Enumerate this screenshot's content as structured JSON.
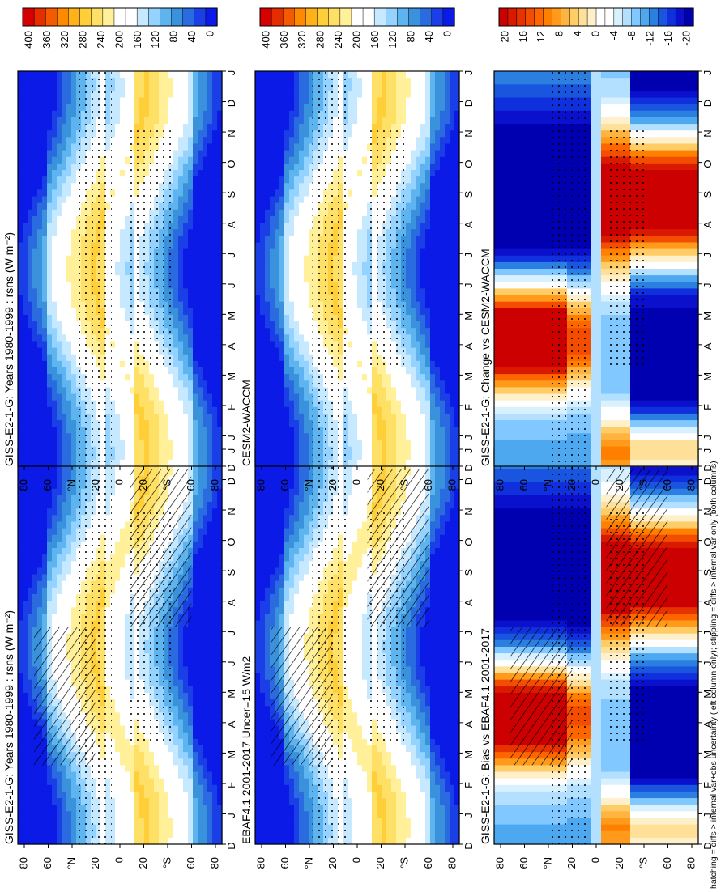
{
  "footnote": "hatching = diffs > internal var+obs uncertainty (left column only); stippling = diffs > internal var only (both columns)",
  "chart_data": [
    {
      "id": "p1",
      "type": "heatmap",
      "title": "GISS-E2-1-G: Years 1980-1999 : rsns (W m⁻²)",
      "field": "abs",
      "hatch": true,
      "stipple": true,
      "months": [
        "D",
        "J",
        "F",
        "M",
        "A",
        "M",
        "J",
        "J",
        "A",
        "S",
        "O",
        "N",
        "D",
        "J"
      ],
      "lat_ticks": [
        "80",
        "60",
        "°N",
        "20",
        "0",
        "20",
        "°S",
        "60",
        "80"
      ],
      "colorbar": {
        "labels": [
          "400",
          "360",
          "320",
          "280",
          "240",
          "200",
          "160",
          "120",
          "80",
          "40",
          "0"
        ],
        "levels": [
          400,
          360,
          320,
          280,
          240,
          200,
          160,
          120,
          80,
          40,
          0
        ],
        "range": [
          0,
          400
        ]
      }
    },
    {
      "id": "p2",
      "type": "heatmap",
      "title": "GISS-E2-1-G: Years 1980-1999 : rsns (W m⁻²)",
      "field": "abs",
      "hatch": false,
      "stipple": true,
      "months": [
        "D",
        "J",
        "F",
        "M",
        "A",
        "M",
        "J",
        "J",
        "A",
        "S",
        "O",
        "N",
        "D",
        "J"
      ],
      "lat_ticks": [
        "80",
        "60",
        "°N",
        "20",
        "0",
        "20",
        "°S",
        "60",
        "80"
      ],
      "colorbar": {
        "labels": [
          "400",
          "360",
          "320",
          "280",
          "240",
          "200",
          "160",
          "120",
          "80",
          "40",
          "0"
        ],
        "levels": [
          400,
          360,
          320,
          280,
          240,
          200,
          160,
          120,
          80,
          40,
          0
        ],
        "range": [
          0,
          400
        ]
      }
    },
    {
      "id": "p3",
      "type": "heatmap",
      "title": "EBAF4.1 2001-2017 Uncer=15 W/m2",
      "field": "abs",
      "hatch": true,
      "stipple": true,
      "months": [
        "D",
        "J",
        "F",
        "M",
        "A",
        "M",
        "J",
        "J",
        "A",
        "S",
        "O",
        "N",
        "D",
        "J"
      ],
      "lat_ticks": [
        "80",
        "60",
        "°N",
        "20",
        "0",
        "20",
        "°S",
        "60",
        "80"
      ],
      "colorbar": {
        "labels": [
          "400",
          "360",
          "320",
          "280",
          "240",
          "200",
          "160",
          "120",
          "80",
          "40",
          "0"
        ],
        "levels": [
          400,
          360,
          320,
          280,
          240,
          200,
          160,
          120,
          80,
          40,
          0
        ],
        "range": [
          0,
          400
        ]
      }
    },
    {
      "id": "p4",
      "type": "heatmap",
      "title": "CESM2-WACCM",
      "field": "abs",
      "hatch": false,
      "stipple": true,
      "months": [
        "D",
        "J",
        "F",
        "M",
        "A",
        "M",
        "J",
        "J",
        "A",
        "S",
        "O",
        "N",
        "D",
        "J"
      ],
      "lat_ticks": [
        "80",
        "60",
        "°N",
        "20",
        "0",
        "20",
        "°S",
        "60",
        "80"
      ],
      "colorbar": {
        "labels": [
          "400",
          "360",
          "320",
          "280",
          "240",
          "200",
          "160",
          "120",
          "80",
          "40",
          "0"
        ],
        "levels": [
          400,
          360,
          320,
          280,
          240,
          200,
          160,
          120,
          80,
          40,
          0
        ],
        "range": [
          0,
          400
        ]
      }
    },
    {
      "id": "p5",
      "type": "heatmap",
      "title": "GISS-E2-1-G: Bias vs EBAF4.1 2001-2017",
      "field": "diff",
      "hatch": true,
      "stipple": true,
      "months": [
        "D",
        "J",
        "F",
        "M",
        "A",
        "M",
        "J",
        "J",
        "A",
        "S",
        "O",
        "N",
        "D",
        "J"
      ],
      "lat_ticks": [
        "80",
        "60",
        "°N",
        "20",
        "0",
        "20",
        "°S",
        "60",
        "80"
      ],
      "colorbar": {
        "labels": [
          "20",
          "16",
          "12",
          "8",
          "4",
          "0",
          "-4",
          "-8",
          "-12",
          "-16",
          "-20"
        ],
        "levels": [
          20,
          16,
          12,
          8,
          4,
          0,
          -4,
          -8,
          -12,
          -16,
          -20
        ],
        "range": [
          -20,
          20
        ]
      }
    },
    {
      "id": "p6",
      "type": "heatmap",
      "title": "GISS-E2-1-G: Change vs CESM2-WACCM",
      "field": "diff2",
      "hatch": false,
      "stipple": true,
      "months": [
        "D",
        "J",
        "F",
        "M",
        "A",
        "M",
        "J",
        "J",
        "A",
        "S",
        "O",
        "N",
        "D",
        "J"
      ],
      "lat_ticks": [
        "80",
        "60",
        "°N",
        "20",
        "0",
        "20",
        "°S",
        "60",
        "80"
      ],
      "colorbar": {
        "labels": [
          "20",
          "16",
          "12",
          "8",
          "4",
          "0",
          "-4",
          "-8",
          "-12",
          "-16",
          "-20"
        ],
        "levels": [
          20,
          16,
          12,
          8,
          4,
          0,
          -4,
          -8,
          -12,
          -16,
          -20
        ],
        "range": [
          -20,
          20
        ]
      }
    }
  ]
}
